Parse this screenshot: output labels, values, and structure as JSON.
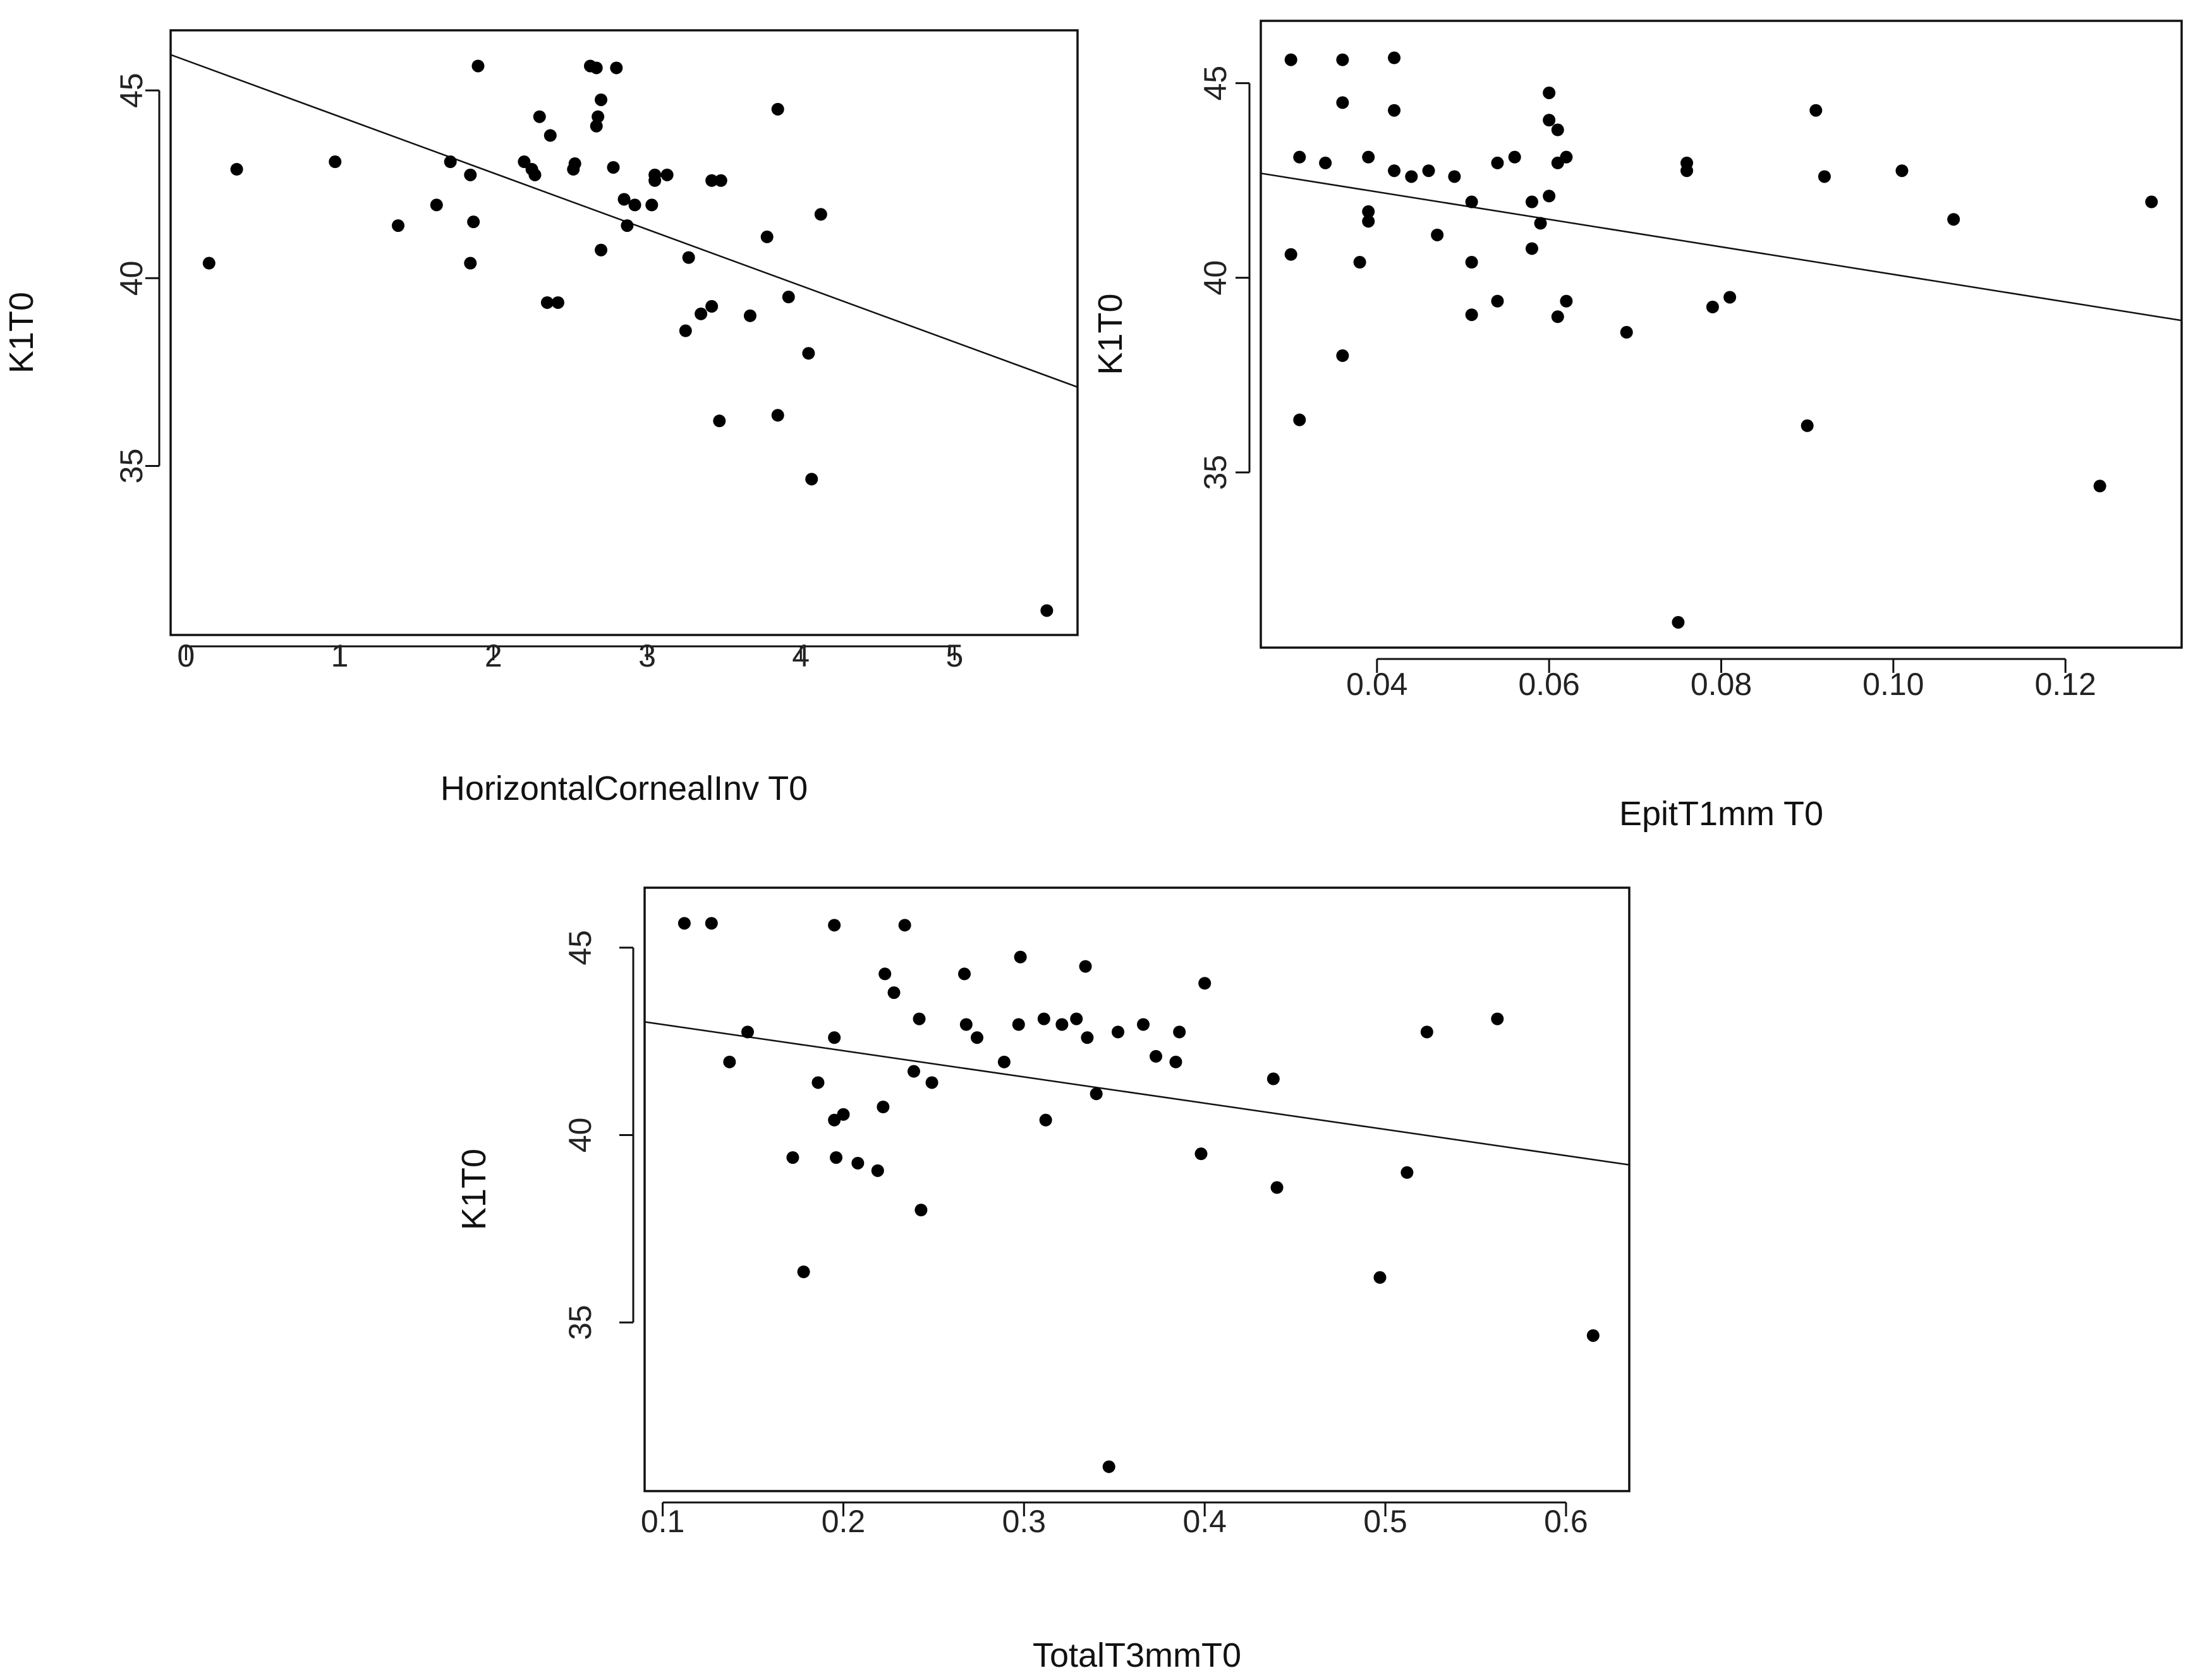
{
  "chart_data": [
    {
      "type": "scatter",
      "id": "top-left",
      "xlabel": "HorizontalCornealInv T0",
      "ylabel": "K1T0",
      "xlim": [
        -0.1,
        5.8
      ],
      "ylim": [
        30.5,
        46.6
      ],
      "xticks": [
        0,
        1,
        2,
        3,
        4,
        5
      ],
      "xtick_labels": [
        "0",
        "1",
        "2",
        "3",
        "4",
        "5"
      ],
      "yticks": [
        35,
        40,
        45
      ],
      "ytick_labels": [
        "35",
        "40",
        "45"
      ],
      "fit_line": {
        "intercept": 45.8,
        "slope": -1.5
      },
      "points": [
        [
          0.15,
          40.4
        ],
        [
          0.33,
          42.9
        ],
        [
          0.97,
          43.1
        ],
        [
          1.38,
          41.4
        ],
        [
          1.63,
          41.95
        ],
        [
          1.72,
          43.1
        ],
        [
          1.85,
          40.4
        ],
        [
          1.85,
          42.75
        ],
        [
          1.87,
          41.5
        ],
        [
          1.9,
          45.65
        ],
        [
          2.2,
          43.1
        ],
        [
          2.25,
          42.9
        ],
        [
          2.27,
          42.75
        ],
        [
          2.3,
          44.3
        ],
        [
          2.35,
          39.35
        ],
        [
          2.37,
          43.8
        ],
        [
          2.42,
          39.35
        ],
        [
          2.52,
          42.9
        ],
        [
          2.53,
          43.05
        ],
        [
          2.63,
          45.65
        ],
        [
          2.67,
          44.05
        ],
        [
          2.67,
          45.6
        ],
        [
          2.68,
          44.3
        ],
        [
          2.7,
          44.75
        ],
        [
          2.7,
          40.75
        ],
        [
          2.78,
          42.95
        ],
        [
          2.8,
          45.6
        ],
        [
          2.85,
          42.1
        ],
        [
          2.87,
          41.4
        ],
        [
          2.92,
          41.95
        ],
        [
          3.03,
          41.95
        ],
        [
          3.05,
          42.75
        ],
        [
          3.05,
          42.6
        ],
        [
          3.13,
          42.75
        ],
        [
          3.25,
          38.6
        ],
        [
          3.27,
          40.55
        ],
        [
          3.35,
          39.05
        ],
        [
          3.42,
          39.25
        ],
        [
          3.42,
          42.6
        ],
        [
          3.48,
          42.6
        ],
        [
          3.47,
          36.2
        ],
        [
          3.67,
          39.0
        ],
        [
          3.78,
          41.1
        ],
        [
          3.85,
          36.35
        ],
        [
          3.85,
          44.5
        ],
        [
          3.92,
          39.5
        ],
        [
          4.05,
          38.0
        ],
        [
          4.07,
          34.65
        ],
        [
          4.13,
          41.7
        ],
        [
          5.6,
          31.15
        ]
      ]
    },
    {
      "type": "scatter",
      "id": "top-right",
      "xlabel": "EpitT1mm T0",
      "ylabel": "K1T0",
      "xlim": [
        0.0265,
        0.1335
      ],
      "ylim": [
        30.5,
        46.6
      ],
      "xticks": [
        0.04,
        0.06,
        0.08,
        0.1,
        0.12
      ],
      "xtick_labels": [
        "0.04",
        "0.06",
        "0.08",
        "0.10",
        "0.12"
      ],
      "yticks": [
        35,
        40,
        45
      ],
      "ytick_labels": [
        "35",
        "40",
        "45"
      ],
      "fit_line": {
        "intercept": 43.62,
        "slope": -35.33
      },
      "points": [
        [
          0.03,
          45.6
        ],
        [
          0.03,
          40.6
        ],
        [
          0.031,
          43.1
        ],
        [
          0.031,
          36.35
        ],
        [
          0.034,
          42.95
        ],
        [
          0.036,
          45.6
        ],
        [
          0.036,
          44.5
        ],
        [
          0.036,
          38.0
        ],
        [
          0.038,
          40.4
        ],
        [
          0.039,
          43.1
        ],
        [
          0.039,
          41.7
        ],
        [
          0.039,
          41.45
        ],
        [
          0.042,
          45.65
        ],
        [
          0.042,
          44.3
        ],
        [
          0.042,
          42.75
        ],
        [
          0.044,
          42.6
        ],
        [
          0.046,
          42.75
        ],
        [
          0.047,
          41.1
        ],
        [
          0.049,
          42.6
        ],
        [
          0.051,
          41.95
        ],
        [
          0.051,
          40.4
        ],
        [
          0.051,
          39.05
        ],
        [
          0.054,
          42.95
        ],
        [
          0.054,
          39.4
        ],
        [
          0.056,
          43.1
        ],
        [
          0.058,
          41.95
        ],
        [
          0.058,
          40.75
        ],
        [
          0.059,
          41.4
        ],
        [
          0.06,
          44.75
        ],
        [
          0.06,
          44.05
        ],
        [
          0.06,
          42.1
        ],
        [
          0.061,
          43.8
        ],
        [
          0.061,
          42.95
        ],
        [
          0.061,
          39.0
        ],
        [
          0.062,
          43.1
        ],
        [
          0.062,
          39.4
        ],
        [
          0.069,
          38.6
        ],
        [
          0.075,
          31.15
        ],
        [
          0.076,
          42.95
        ],
        [
          0.076,
          42.75
        ],
        [
          0.079,
          39.25
        ],
        [
          0.081,
          39.5
        ],
        [
          0.09,
          36.2
        ],
        [
          0.091,
          44.3
        ],
        [
          0.092,
          42.6
        ],
        [
          0.101,
          42.75
        ],
        [
          0.107,
          41.5
        ],
        [
          0.124,
          34.65
        ],
        [
          0.13,
          41.95
        ]
      ]
    },
    {
      "type": "scatter",
      "id": "bottom",
      "xlabel": "TotalT3mmT0",
      "ylabel": "K1T0",
      "xlim": [
        0.09,
        0.635
      ],
      "ylim": [
        30.5,
        46.6
      ],
      "xticks": [
        0.1,
        0.2,
        0.3,
        0.4,
        0.5,
        0.6
      ],
      "xtick_labels": [
        "0.1",
        "0.2",
        "0.3",
        "0.4",
        "0.5",
        "0.6"
      ],
      "yticks": [
        35,
        40,
        45
      ],
      "ytick_labels": [
        "35",
        "40",
        "45"
      ],
      "fit_line": {
        "intercept": 43.65,
        "slope": -7.0
      },
      "points": [
        [
          0.112,
          45.65
        ],
        [
          0.127,
          45.65
        ],
        [
          0.137,
          41.95
        ],
        [
          0.147,
          42.75
        ],
        [
          0.172,
          39.4
        ],
        [
          0.178,
          36.35
        ],
        [
          0.186,
          41.4
        ],
        [
          0.195,
          45.6
        ],
        [
          0.195,
          42.6
        ],
        [
          0.195,
          40.4
        ],
        [
          0.196,
          39.4
        ],
        [
          0.2,
          40.55
        ],
        [
          0.208,
          39.25
        ],
        [
          0.219,
          39.05
        ],
        [
          0.222,
          40.75
        ],
        [
          0.223,
          44.3
        ],
        [
          0.228,
          43.8
        ],
        [
          0.234,
          45.6
        ],
        [
          0.239,
          41.7
        ],
        [
          0.242,
          43.1
        ],
        [
          0.243,
          38.0
        ],
        [
          0.249,
          41.4
        ],
        [
          0.267,
          44.3
        ],
        [
          0.268,
          42.95
        ],
        [
          0.274,
          42.6
        ],
        [
          0.289,
          41.95
        ],
        [
          0.297,
          42.95
        ],
        [
          0.298,
          44.75
        ],
        [
          0.311,
          43.1
        ],
        [
          0.312,
          40.4
        ],
        [
          0.321,
          42.95
        ],
        [
          0.329,
          43.1
        ],
        [
          0.334,
          44.5
        ],
        [
          0.335,
          42.6
        ],
        [
          0.34,
          41.1
        ],
        [
          0.347,
          31.15
        ],
        [
          0.352,
          42.75
        ],
        [
          0.366,
          42.95
        ],
        [
          0.373,
          42.1
        ],
        [
          0.384,
          41.95
        ],
        [
          0.386,
          42.75
        ],
        [
          0.398,
          39.5
        ],
        [
          0.4,
          44.05
        ],
        [
          0.438,
          41.5
        ],
        [
          0.44,
          38.6
        ],
        [
          0.497,
          36.2
        ],
        [
          0.512,
          39.0
        ],
        [
          0.523,
          42.75
        ],
        [
          0.562,
          43.1
        ],
        [
          0.615,
          34.65
        ]
      ]
    }
  ]
}
